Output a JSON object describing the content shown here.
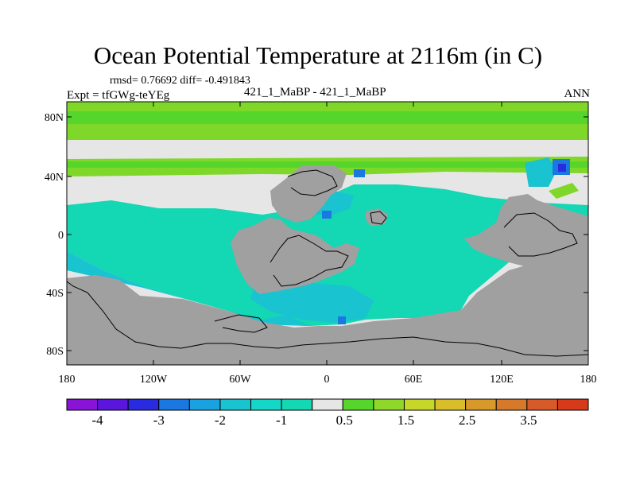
{
  "title": "Ocean Potential Temperature at 2116m (in C)",
  "stats_line": "rmsd= 0.76692 diff= -0.491843",
  "left_label": "Expt = tfGWg-teYEg",
  "center_label": "421_1_MaBP - 421_1_MaBP",
  "right_label": "ANN",
  "colors": {
    "land": "#a0a0a0",
    "near_zero": "#e6e6e6",
    "teal": "#14d7b3",
    "green": "#7fd72a",
    "cyan_light": "#19c3d0",
    "blue_mid": "#1b78e0",
    "blue_dark": "#2a2adf"
  },
  "map": {
    "lat_ticks": [
      "80N",
      "40N",
      "0",
      "40S",
      "80S"
    ],
    "lon_ticks": [
      "180",
      "120W",
      "60W",
      "0",
      "60E",
      "120E",
      "180"
    ]
  },
  "colorbar": {
    "colors": [
      "#8a13d8",
      "#5a16dc",
      "#2a2adf",
      "#1b78e0",
      "#1aa2e0",
      "#19c3d0",
      "#14d7c8",
      "#14d7b3",
      "#e6e6e6",
      "#56d62b",
      "#8fd72a",
      "#c6d72a",
      "#d7be2a",
      "#d79a2a",
      "#d7792a",
      "#d75a2a",
      "#d73a1a"
    ],
    "labels": [
      "-4",
      "-3",
      "-2",
      "-1",
      "0.5",
      "1.5",
      "2.5",
      "3.5"
    ]
  }
}
